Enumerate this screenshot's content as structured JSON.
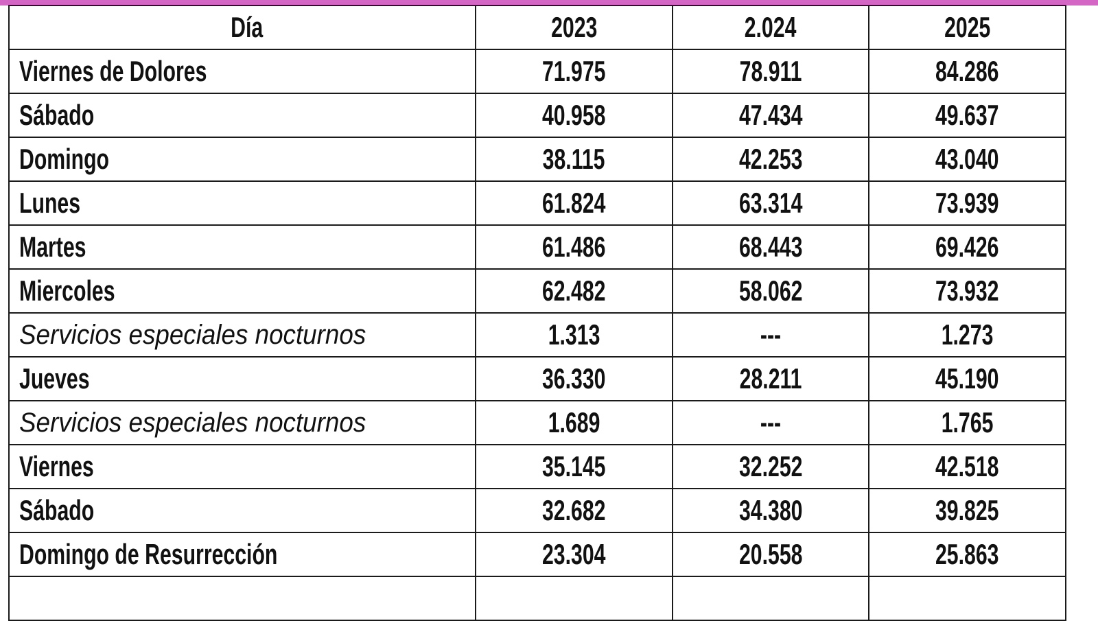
{
  "accent_color": "#d466c6",
  "table": {
    "headers": [
      "Día",
      "2023",
      "2.024",
      "2025"
    ],
    "rows": [
      {
        "day": "Viernes de Dolores",
        "italic": false,
        "values": [
          "71.975",
          "78.911",
          "84.286"
        ]
      },
      {
        "day": "Sábado",
        "italic": false,
        "values": [
          "40.958",
          "47.434",
          "49.637"
        ]
      },
      {
        "day": "Domingo",
        "italic": false,
        "values": [
          "38.115",
          "42.253",
          "43.040"
        ]
      },
      {
        "day": "Lunes",
        "italic": false,
        "values": [
          "61.824",
          "63.314",
          "73.939"
        ]
      },
      {
        "day": "Martes",
        "italic": false,
        "values": [
          "61.486",
          "68.443",
          "69.426"
        ]
      },
      {
        "day": "Miercoles",
        "italic": false,
        "values": [
          "62.482",
          "58.062",
          "73.932"
        ]
      },
      {
        "day": "Servicios especiales nocturnos",
        "italic": true,
        "values": [
          "1.313",
          "---",
          "1.273"
        ]
      },
      {
        "day": "Jueves",
        "italic": false,
        "values": [
          "36.330",
          "28.211",
          "45.190"
        ]
      },
      {
        "day": "Servicios especiales nocturnos",
        "italic": true,
        "values": [
          "1.689",
          "---",
          "1.765"
        ]
      },
      {
        "day": "Viernes",
        "italic": false,
        "values": [
          "35.145",
          "32.252",
          "42.518"
        ]
      },
      {
        "day": "Sábado",
        "italic": false,
        "values": [
          "32.682",
          "34.380",
          "39.825"
        ]
      },
      {
        "day": "Domingo de Resurrección",
        "italic": false,
        "values": [
          "23.304",
          "20.558",
          "25.863"
        ]
      }
    ]
  }
}
